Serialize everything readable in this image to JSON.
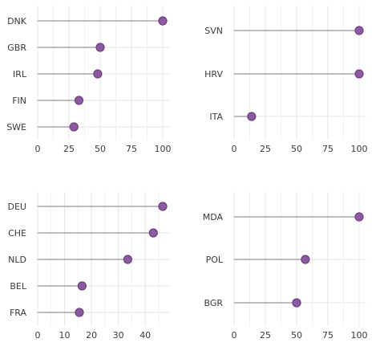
{
  "colors": {
    "dot": "#8c5a9e",
    "stem": "#a6a6a6",
    "grid": "#e4e4e4"
  },
  "chart_data": [
    {
      "type": "lollipop",
      "panel": "top-left",
      "categories": [
        "DNK",
        "GBR",
        "IRL",
        "FIN",
        "SWE"
      ],
      "values": [
        100,
        50,
        48,
        33,
        29
      ],
      "xticks": [
        "0",
        "25",
        "50",
        "75",
        "100"
      ],
      "xlim": [
        0,
        100
      ],
      "grid": true
    },
    {
      "type": "lollipop",
      "panel": "top-right",
      "categories": [
        "SVN",
        "HRV",
        "ITA"
      ],
      "values": [
        100,
        100,
        14
      ],
      "xticks": [
        "0",
        "25",
        "50",
        "75",
        "100"
      ],
      "xlim": [
        0,
        100
      ],
      "grid": true
    },
    {
      "type": "lollipop",
      "panel": "bottom-left",
      "categories": [
        "DEU",
        "CHE",
        "NLD",
        "BEL",
        "FRA"
      ],
      "values": [
        46.5,
        43,
        33.5,
        16.5,
        15.5
      ],
      "xticks": [
        "0",
        "10",
        "20",
        "30",
        "40"
      ],
      "xlim": [
        0,
        46.5
      ],
      "grid": true
    },
    {
      "type": "lollipop",
      "panel": "bottom-right",
      "categories": [
        "MDA",
        "POL",
        "BGR"
      ],
      "values": [
        100,
        57,
        50
      ],
      "xticks": [
        "0",
        "25",
        "50",
        "75",
        "100"
      ],
      "xlim": [
        0,
        100
      ],
      "grid": true
    }
  ]
}
